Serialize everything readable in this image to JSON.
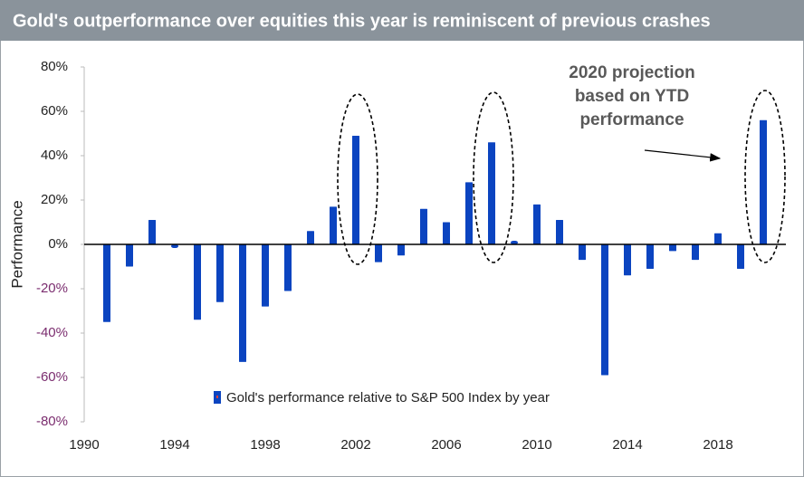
{
  "chart_data": {
    "type": "bar",
    "title": "Gold's outperformance over equities this year is reminiscent of previous crashes",
    "y_label": "Performance",
    "annotation": "2020 projection based on YTD performance",
    "x": [
      1991,
      1992,
      1993,
      1994,
      1995,
      1996,
      1997,
      1998,
      1999,
      2000,
      2001,
      2002,
      2003,
      2004,
      2005,
      2006,
      2007,
      2008,
      2009,
      2010,
      2011,
      2012,
      2013,
      2014,
      2015,
      2016,
      2017,
      2018,
      2019,
      2020
    ],
    "series": [
      {
        "name": "Gold's performance relative to S&P 500 Index by year",
        "color": "#0b44c0",
        "values": [
          -35,
          -10,
          11,
          -1,
          -34,
          -26,
          -53,
          -28,
          -21,
          6,
          17,
          49,
          -8,
          -5,
          16,
          10,
          28,
          46,
          1,
          18,
          11,
          -7,
          -59,
          -14,
          -11,
          -3,
          -7,
          5,
          -11,
          56
        ]
      }
    ],
    "xlim": [
      1990,
      2021
    ],
    "xticks": [
      1990,
      1994,
      1998,
      2002,
      2006,
      2010,
      2014,
      2018
    ],
    "ylim": [
      -80,
      80
    ],
    "yticks": [
      {
        "value": -80,
        "label": "-80%"
      },
      {
        "value": -60,
        "label": "-60%"
      },
      {
        "value": -40,
        "label": "-40%"
      },
      {
        "value": -20,
        "label": "-20%"
      },
      {
        "value": 0,
        "label": "0%"
      },
      {
        "value": 20,
        "label": "20%"
      },
      {
        "value": 40,
        "label": "40%"
      },
      {
        "value": 60,
        "label": "60%"
      },
      {
        "value": 80,
        "label": "80%"
      }
    ],
    "negative_tick_color": "#7b2d6f",
    "grid": false
  }
}
